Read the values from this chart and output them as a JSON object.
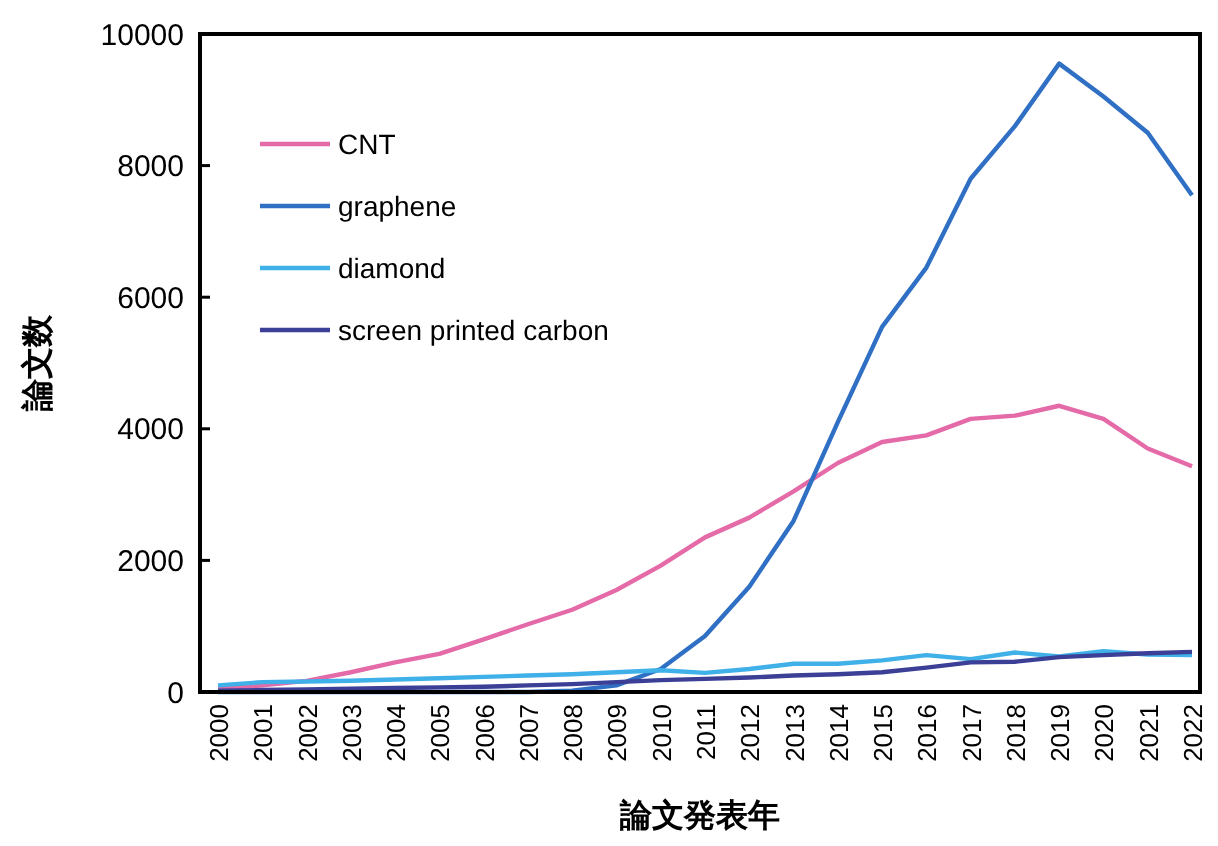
{
  "chart_data": {
    "type": "line",
    "xlabel": "論文発表年",
    "ylabel": "論文数",
    "categories": [
      "2000",
      "2001",
      "2002",
      "2003",
      "2004",
      "2005",
      "2006",
      "2007",
      "2008",
      "2009",
      "2010",
      "2011",
      "2012",
      "2013",
      "2014",
      "2015",
      "2016",
      "2017",
      "2018",
      "2019",
      "2020",
      "2021",
      "2022"
    ],
    "series": [
      {
        "name": "CNT",
        "color": "#e46aa8",
        "values": [
          50,
          100,
          170,
          300,
          450,
          580,
          800,
          1030,
          1250,
          1550,
          1920,
          2350,
          2650,
          3050,
          3480,
          3800,
          3900,
          4150,
          4200,
          4350,
          4150,
          3700,
          3430
        ]
      },
      {
        "name": "graphene",
        "color": "#2f6fc4",
        "values": [
          0,
          0,
          0,
          0,
          0,
          0,
          0,
          0,
          20,
          100,
          350,
          850,
          1600,
          2600,
          4100,
          5550,
          6450,
          7800,
          8600,
          9550,
          9050,
          8500,
          7550
        ]
      },
      {
        "name": "diamond",
        "color": "#3fb0e8",
        "values": [
          100,
          150,
          160,
          170,
          190,
          210,
          230,
          250,
          270,
          300,
          330,
          290,
          350,
          430,
          430,
          480,
          560,
          500,
          600,
          540,
          620,
          570,
          560
        ]
      },
      {
        "name": "screen printed carbon",
        "color": "#3b3f96",
        "values": [
          20,
          30,
          40,
          50,
          60,
          70,
          80,
          100,
          120,
          150,
          180,
          200,
          220,
          250,
          270,
          300,
          370,
          450,
          460,
          530,
          560,
          590,
          610
        ]
      }
    ],
    "ylim": [
      0,
      10000
    ],
    "yticks": [
      0,
      2000,
      4000,
      6000,
      8000,
      10000
    ],
    "grid": false,
    "legend": "top left",
    "marker": "none",
    "line_style": "solid"
  }
}
